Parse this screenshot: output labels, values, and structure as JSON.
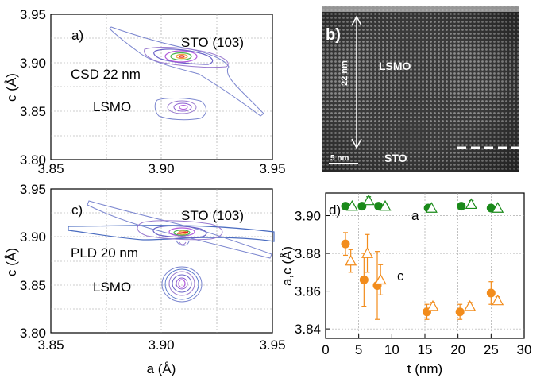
{
  "chart_data": [
    {
      "type": "heatmap",
      "panel_label": "a)",
      "xlim": [
        3.85,
        3.95
      ],
      "ylim": [
        3.8,
        3.95
      ],
      "x_ticks": [
        "3.85",
        "3.90",
        "3.95"
      ],
      "y_ticks": [
        "3.80",
        "3.85",
        "3.90",
        "3.95"
      ],
      "ylabel": "c (Å)",
      "xlabel": "",
      "annotations": [
        "STO (103)",
        "CSD 22 nm",
        "LSMO"
      ],
      "peaks": [
        {
          "name": "STO (103)",
          "a": 3.905,
          "c": 3.907
        },
        {
          "name": "LSMO",
          "a": 3.905,
          "c": 3.852
        }
      ],
      "grid": true
    },
    {
      "type": "image",
      "panel_label": "b)",
      "labels": {
        "thickness": "22 nm",
        "film": "LSMO",
        "scale": "5 nm",
        "substrate": "STO"
      }
    },
    {
      "type": "heatmap",
      "panel_label": "c)",
      "xlim": [
        3.85,
        3.95
      ],
      "ylim": [
        3.8,
        3.95
      ],
      "x_ticks": [
        "3.85",
        "3.90",
        "3.95"
      ],
      "y_ticks": [
        "3.80",
        "3.85",
        "3.90",
        "3.95"
      ],
      "ylabel": "c (Å)",
      "xlabel": "a (Å)",
      "annotations": [
        "STO (103)",
        "PLD 20 nm",
        "LSMO"
      ],
      "peaks": [
        {
          "name": "STO (103)",
          "a": 3.905,
          "c": 3.907
        },
        {
          "name": "LSMO",
          "a": 3.904,
          "c": 3.849
        }
      ],
      "grid": true
    },
    {
      "type": "scatter",
      "panel_label": "d)",
      "xlim": [
        0,
        30
      ],
      "ylim": [
        3.835,
        3.912
      ],
      "x_ticks": [
        "0",
        "5",
        "10",
        "15",
        "20",
        "25",
        "30"
      ],
      "y_ticks": [
        "3.84",
        "3.86",
        "3.88",
        "3.90"
      ],
      "xlabel": "t (nm)",
      "ylabel": "a,c (Å)",
      "annotations": [
        "a",
        "c"
      ],
      "series": [
        {
          "marker": "filled-circle",
          "color": "#1a8a1a",
          "x": [
            3,
            5.5,
            8,
            15.5,
            20.5,
            25
          ],
          "y": [
            3.905,
            3.905,
            3.905,
            3.904,
            3.905,
            3.904
          ],
          "err": [
            0.001,
            0.001,
            0.001,
            0.001,
            0.001,
            0.001
          ]
        },
        {
          "marker": "open-triangle",
          "color": "#1a8a1a",
          "x": [
            4,
            6.5,
            9,
            16,
            22,
            26
          ],
          "y": [
            3.905,
            3.908,
            3.905,
            3.904,
            3.906,
            3.904
          ],
          "err": [
            0.001,
            0.002,
            0.001,
            0.001,
            0.002,
            0.001
          ]
        },
        {
          "marker": "filled-circle",
          "color": "#f28c1c",
          "x": [
            3,
            5.8,
            7.8,
            15.3,
            20.3,
            25
          ],
          "y": [
            3.885,
            3.866,
            3.863,
            3.849,
            3.849,
            3.859
          ],
          "err": [
            0.006,
            0.014,
            0.018,
            0.004,
            0.004,
            0.006
          ]
        },
        {
          "marker": "open-triangle",
          "color": "#f28c1c",
          "x": [
            3.8,
            6.3,
            8.3,
            16.2,
            21.8,
            26
          ],
          "y": [
            3.876,
            3.88,
            3.866,
            3.852,
            3.852,
            3.855
          ],
          "err": [
            0.006,
            0.01,
            0.008,
            0.002,
            0.002,
            0.002
          ]
        }
      ],
      "grid": true
    }
  ]
}
